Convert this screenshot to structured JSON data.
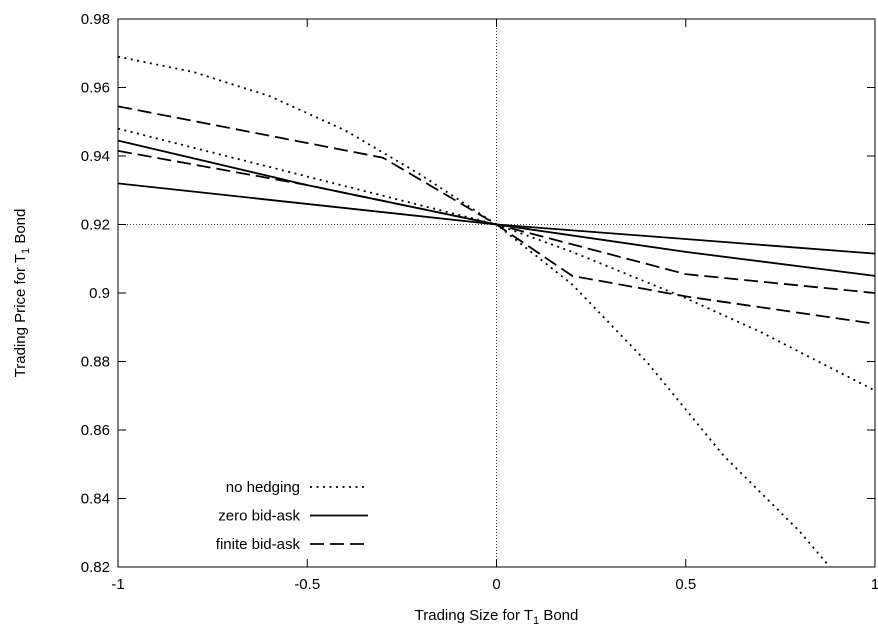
{
  "chart_data": {
    "type": "line",
    "title": "",
    "xlabel": {
      "prefix": "Trading Size for T",
      "sub": "1",
      "suffix": " Bond"
    },
    "ylabel": {
      "prefix": "Trading Price for T",
      "sub": "1",
      "suffix": " Bond"
    },
    "xlim": [
      -1,
      1
    ],
    "ylim": [
      0.82,
      0.98
    ],
    "xticks": [
      -1,
      -0.5,
      0,
      0.5,
      1
    ],
    "xtick_labels": [
      "-1",
      "-0.5",
      "0",
      "0.5",
      "1"
    ],
    "yticks": [
      0.82,
      0.84,
      0.86,
      0.88,
      0.9,
      0.92,
      0.94,
      0.96,
      0.98
    ],
    "ytick_labels": [
      "0.82",
      "0.84",
      "0.86",
      "0.88",
      "0.9",
      "0.92",
      "0.94",
      "0.96",
      "0.98"
    ],
    "reference_lines": {
      "x": 0,
      "y": 0.92,
      "style": "dotted"
    },
    "legend_position": "bottom-left",
    "legend": [
      {
        "label": "no hedging",
        "dash": "dotted"
      },
      {
        "label": "zero bid-ask",
        "dash": "solid"
      },
      {
        "label": "finite bid-ask",
        "dash": "dashed"
      }
    ],
    "series": [
      {
        "style": "dotted",
        "points": [
          [
            -1,
            0.969
          ],
          [
            -0.8,
            0.9645
          ],
          [
            -0.6,
            0.9575
          ],
          [
            -0.4,
            0.9475
          ],
          [
            -0.2,
            0.9345
          ],
          [
            0,
            0.92
          ],
          [
            0.2,
            0.9025
          ],
          [
            0.4,
            0.8795
          ],
          [
            0.6,
            0.8525
          ],
          [
            0.8,
            0.8305
          ],
          [
            0.9,
            0.8175
          ],
          [
            1.0,
            0.8045
          ]
        ]
      },
      {
        "style": "dotted",
        "points": [
          [
            -1,
            0.948
          ],
          [
            -0.5,
            0.934
          ],
          [
            0,
            0.92
          ],
          [
            0.2,
            0.912
          ],
          [
            0.5,
            0.8985
          ],
          [
            0.7,
            0.8885
          ],
          [
            1.0,
            0.8715
          ]
        ]
      },
      {
        "style": "solid",
        "points": [
          [
            -1,
            0.932
          ],
          [
            0,
            0.92
          ],
          [
            1,
            0.9115
          ]
        ]
      },
      {
        "style": "solid",
        "points": [
          [
            -1,
            0.9445
          ],
          [
            -0.5,
            0.9315
          ],
          [
            0,
            0.92
          ],
          [
            0.5,
            0.912
          ],
          [
            1,
            0.905
          ]
        ]
      },
      {
        "style": "dashed",
        "points": [
          [
            -1,
            0.9545
          ],
          [
            -0.3,
            0.9395
          ],
          [
            0,
            0.92
          ],
          [
            0.2,
            0.905
          ],
          [
            0.5,
            0.899
          ],
          [
            1,
            0.891
          ]
        ]
      },
      {
        "style": "dashed",
        "points": [
          [
            -1,
            0.9415
          ],
          [
            -0.5,
            0.9315
          ],
          [
            0,
            0.92
          ],
          [
            0.5,
            0.9055
          ],
          [
            1,
            0.9
          ]
        ]
      }
    ]
  }
}
